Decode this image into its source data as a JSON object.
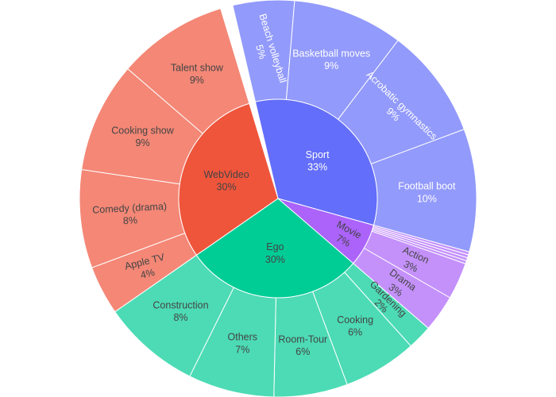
{
  "chart_data": {
    "type": "sunburst",
    "unit": "%",
    "colors": {
      "Sport": {
        "inner": "#636efa",
        "outer": "#929afb"
      },
      "WebVideo": {
        "inner": "#ef553b",
        "outer": "#f48776"
      },
      "Ego": {
        "inner": "#00cc96",
        "outer": "#4cdbb5"
      },
      "Movie": {
        "inner": "#ab63fa",
        "outer": "#c491fb"
      }
    },
    "inner": [
      {
        "label": "Sport",
        "value": 33
      },
      {
        "label": "Movie",
        "value": 7
      },
      {
        "label": "Ego",
        "value": 30
      },
      {
        "label": "WebVideo",
        "value": 30
      }
    ],
    "outer": [
      {
        "parent": "Sport",
        "label": "Beach volleyball",
        "value": 5
      },
      {
        "parent": "Sport",
        "label": "Basketball moves",
        "value": 9
      },
      {
        "parent": "Sport",
        "label": "Acrobatic gymnastics",
        "value": 9
      },
      {
        "parent": "Sport",
        "label": "Football boot",
        "value": 10
      },
      {
        "parent": "Movie",
        "label": "",
        "value": 0.25
      },
      {
        "parent": "Movie",
        "label": "",
        "value": 0.25
      },
      {
        "parent": "Movie",
        "label": "",
        "value": 0.25
      },
      {
        "parent": "Movie",
        "label": "",
        "value": 0.25
      },
      {
        "parent": "Movie",
        "label": "Action",
        "value": 3
      },
      {
        "parent": "Movie",
        "label": "Drama",
        "value": 3
      },
      {
        "parent": "Ego",
        "label": "Gardening",
        "value": 2
      },
      {
        "parent": "Ego",
        "label": "Cooking",
        "value": 6
      },
      {
        "parent": "Ego",
        "label": "Room-Tour",
        "value": 6
      },
      {
        "parent": "Ego",
        "label": "Others",
        "value": 7
      },
      {
        "parent": "Ego",
        "label": "Construction",
        "value": 8
      },
      {
        "parent": "WebVideo",
        "label": "Apple TV",
        "value": 4
      },
      {
        "parent": "WebVideo",
        "label": "Comedy (drama)",
        "value": 8
      },
      {
        "parent": "WebVideo",
        "label": "Cooking show",
        "value": 9
      },
      {
        "parent": "WebVideo",
        "label": "Talent show",
        "value": 9
      }
    ]
  }
}
